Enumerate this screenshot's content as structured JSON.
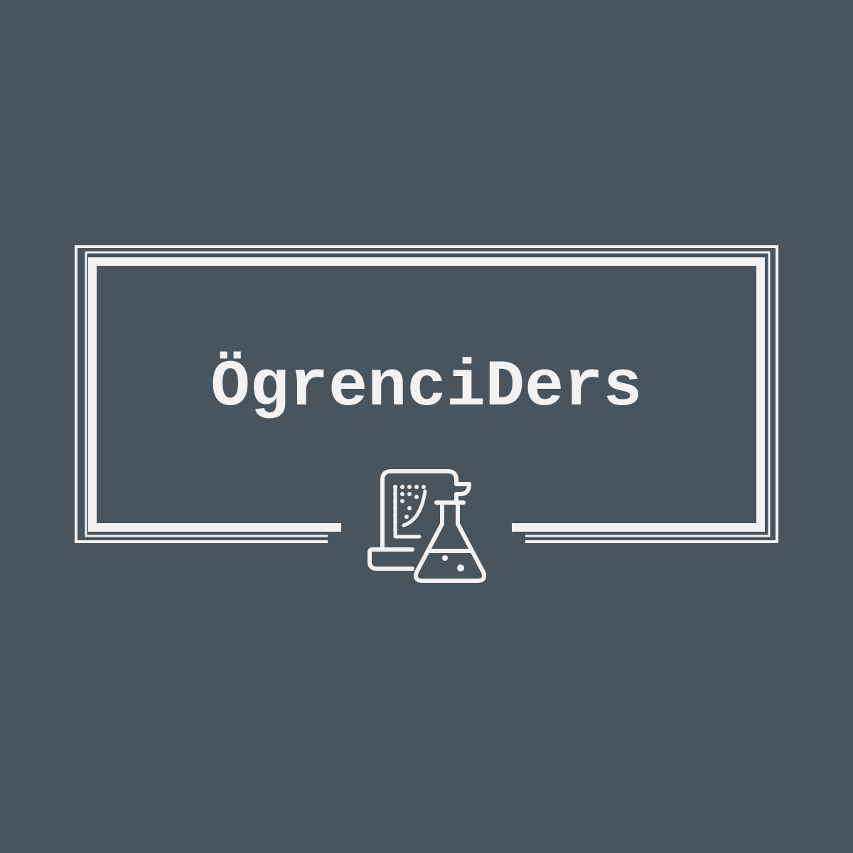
{
  "brand": {
    "name": "ÖgrenciDers"
  },
  "icon": {
    "name": "science-scroll-flask-icon"
  },
  "colors": {
    "background": "#48555f",
    "foreground": "#f2f2f2"
  }
}
